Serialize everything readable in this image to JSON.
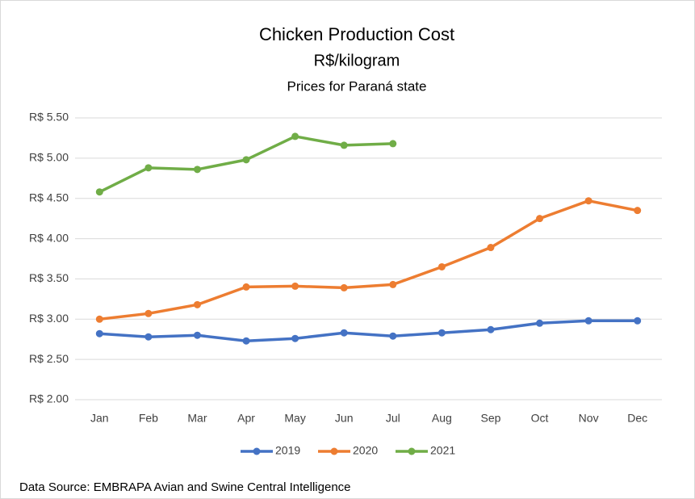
{
  "chart_data": {
    "type": "line",
    "title": "Chicken Production Cost",
    "subtitle": "R$/kilogram",
    "subtitle2": "Prices for Paraná state",
    "categories": [
      "Jan",
      "Feb",
      "Mar",
      "Apr",
      "May",
      "Jun",
      "Jul",
      "Aug",
      "Sep",
      "Oct",
      "Nov",
      "Dec"
    ],
    "series": [
      {
        "name": "2019",
        "color": "#4472c4",
        "values": [
          2.82,
          2.78,
          2.8,
          2.73,
          2.76,
          2.83,
          2.79,
          2.83,
          2.87,
          2.95,
          2.98,
          2.98
        ]
      },
      {
        "name": "2020",
        "color": "#ed7d31",
        "values": [
          3.0,
          3.07,
          3.18,
          3.4,
          3.41,
          3.39,
          3.43,
          3.65,
          3.89,
          4.25,
          4.47,
          4.35
        ]
      },
      {
        "name": "2021",
        "color": "#70ad47",
        "values": [
          4.58,
          4.88,
          4.86,
          4.98,
          5.27,
          5.16,
          5.18,
          null,
          null,
          null,
          null,
          null
        ]
      }
    ],
    "ylim": [
      2.0,
      5.5
    ],
    "yticks": [
      {
        "value": 2.0,
        "label": "R$ 2.00"
      },
      {
        "value": 2.5,
        "label": "R$ 2.50"
      },
      {
        "value": 3.0,
        "label": "R$ 3.00"
      },
      {
        "value": 3.5,
        "label": "R$ 3.50"
      },
      {
        "value": 4.0,
        "label": "R$ 4.00"
      },
      {
        "value": 4.5,
        "label": "R$ 4.50"
      },
      {
        "value": 5.0,
        "label": "R$ 5.00"
      },
      {
        "value": 5.5,
        "label": "R$ 5.50"
      }
    ],
    "grid": true,
    "legend": "bottom",
    "source": "Data Source: EMBRAPA Avian and Swine Central Intelligence"
  }
}
